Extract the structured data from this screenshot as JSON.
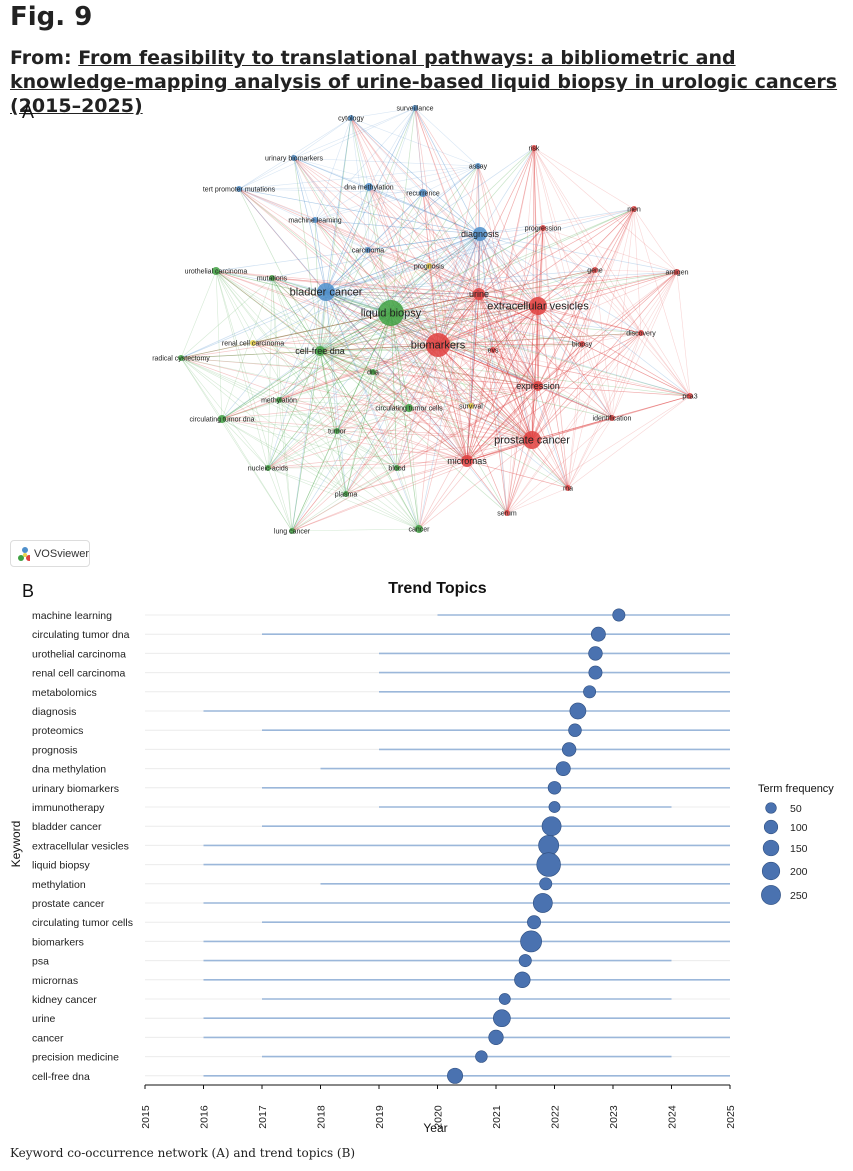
{
  "figure": {
    "number": "Fig. 9",
    "from_label": "From:",
    "article_title": "From feasibility to translational pathways: a bibliometric and knowledge-mapping analysis of urine-based liquid biopsy in urologic cancers (2015–2025)",
    "panel_a_label": "A",
    "panel_b_label": "B",
    "vosviewer_label": "VOSviewer",
    "caption": "Keyword co-occurrence network (A) and trend topics (B)"
  },
  "colors": {
    "blue_cluster": "#4f8fcb",
    "red_cluster": "#e0413f",
    "green_cluster": "#3fa142",
    "yellow_cluster": "#e8d44d",
    "trend_point": "#4a72b0",
    "trend_line": "#9bb7da"
  },
  "network": {
    "nodes": [
      {
        "label": "surveillance",
        "cluster": "blue",
        "size": 3
      },
      {
        "label": "cytology",
        "cluster": "blue",
        "size": 3
      },
      {
        "label": "urinary biomarkers",
        "cluster": "blue",
        "size": 3
      },
      {
        "label": "tert promoter mutations",
        "cluster": "blue",
        "size": 3
      },
      {
        "label": "dna methylation",
        "cluster": "blue",
        "size": 4
      },
      {
        "label": "recurrence",
        "cluster": "blue",
        "size": 4
      },
      {
        "label": "assay",
        "cluster": "blue",
        "size": 3
      },
      {
        "label": "machine learning",
        "cluster": "blue",
        "size": 3
      },
      {
        "label": "carcinoma",
        "cluster": "blue",
        "size": 3
      },
      {
        "label": "diagnosis",
        "cluster": "blue",
        "size": 7
      },
      {
        "label": "bladder cancer",
        "cluster": "blue",
        "size": 9
      },
      {
        "label": "risk",
        "cluster": "red",
        "size": 3
      },
      {
        "label": "men",
        "cluster": "red",
        "size": 3
      },
      {
        "label": "progression",
        "cluster": "red",
        "size": 3
      },
      {
        "label": "gene",
        "cluster": "red",
        "size": 3
      },
      {
        "label": "antigen",
        "cluster": "red",
        "size": 3
      },
      {
        "label": "urine",
        "cluster": "red",
        "size": 6
      },
      {
        "label": "extracellular vesicles",
        "cluster": "red",
        "size": 9
      },
      {
        "label": "discovery",
        "cluster": "red",
        "size": 3
      },
      {
        "label": "biomarkers",
        "cluster": "red",
        "size": 12
      },
      {
        "label": "evs",
        "cluster": "red",
        "size": 3
      },
      {
        "label": "biopsy",
        "cluster": "red",
        "size": 3
      },
      {
        "label": "pca3",
        "cluster": "red",
        "size": 3
      },
      {
        "label": "expression",
        "cluster": "red",
        "size": 5
      },
      {
        "label": "identification",
        "cluster": "red",
        "size": 3
      },
      {
        "label": "prostate cancer",
        "cluster": "red",
        "size": 9
      },
      {
        "label": "micrornas",
        "cluster": "red",
        "size": 6
      },
      {
        "label": "rna",
        "cluster": "red",
        "size": 3
      },
      {
        "label": "serum",
        "cluster": "red",
        "size": 3
      },
      {
        "label": "urothelial carcinoma",
        "cluster": "green",
        "size": 4
      },
      {
        "label": "mutations",
        "cluster": "green",
        "size": 3
      },
      {
        "label": "liquid biopsy",
        "cluster": "green",
        "size": 13
      },
      {
        "label": "radical cystectomy",
        "cluster": "green",
        "size": 3
      },
      {
        "label": "cell-free dna",
        "cluster": "green",
        "size": 5
      },
      {
        "label": "dna",
        "cluster": "green",
        "size": 3
      },
      {
        "label": "methylation",
        "cluster": "green",
        "size": 3
      },
      {
        "label": "circulating tumor dna",
        "cluster": "green",
        "size": 4
      },
      {
        "label": "circulating tumor cells",
        "cluster": "green",
        "size": 4
      },
      {
        "label": "tumor",
        "cluster": "green",
        "size": 3
      },
      {
        "label": "nucleic-acids",
        "cluster": "green",
        "size": 3
      },
      {
        "label": "blood",
        "cluster": "green",
        "size": 3
      },
      {
        "label": "plasma",
        "cluster": "green",
        "size": 3
      },
      {
        "label": "lung cancer",
        "cluster": "green",
        "size": 3
      },
      {
        "label": "cancer",
        "cluster": "green",
        "size": 4
      },
      {
        "label": "renal cell carcinoma",
        "cluster": "yellow",
        "size": 3
      },
      {
        "label": "prognosis",
        "cluster": "yellow",
        "size": 3
      },
      {
        "label": "survival",
        "cluster": "yellow",
        "size": 3
      }
    ]
  },
  "chart_data": {
    "type": "scatter",
    "title": "Trend Topics",
    "xlabel": "Year",
    "ylabel": "Keyword",
    "xlim": [
      2015,
      2025
    ],
    "x_ticks": [
      "2015",
      "2016",
      "2017",
      "2018",
      "2019",
      "2020",
      "2021",
      "2022",
      "2023",
      "2024",
      "2025"
    ],
    "legend": {
      "title": "Term frequency",
      "position": "right",
      "entries": [
        {
          "label": "50",
          "value": 50
        },
        {
          "label": "100",
          "value": 100
        },
        {
          "label": "150",
          "value": 150
        },
        {
          "label": "200",
          "value": 200
        },
        {
          "label": "250",
          "value": 250
        }
      ]
    },
    "series": [
      {
        "keyword": "machine learning",
        "start": 2020,
        "end": 2025,
        "median_year": 2023.1,
        "frequency": 35
      },
      {
        "keyword": "circulating tumor dna",
        "start": 2017,
        "end": 2025,
        "median_year": 2022.75,
        "frequency": 55
      },
      {
        "keyword": "urothelial carcinoma",
        "start": 2019,
        "end": 2025,
        "median_year": 2022.7,
        "frequency": 50
      },
      {
        "keyword": "renal cell carcinoma",
        "start": 2019,
        "end": 2025,
        "median_year": 2022.7,
        "frequency": 45
      },
      {
        "keyword": "metabolomics",
        "start": 2019,
        "end": 2025,
        "median_year": 2022.6,
        "frequency": 35
      },
      {
        "keyword": "diagnosis",
        "start": 2016,
        "end": 2025,
        "median_year": 2022.4,
        "frequency": 80
      },
      {
        "keyword": "proteomics",
        "start": 2017,
        "end": 2025,
        "median_year": 2022.35,
        "frequency": 40
      },
      {
        "keyword": "prognosis",
        "start": 2019,
        "end": 2025,
        "median_year": 2022.25,
        "frequency": 50
      },
      {
        "keyword": "dna methylation",
        "start": 2018,
        "end": 2025,
        "median_year": 2022.15,
        "frequency": 55
      },
      {
        "keyword": "urinary biomarkers",
        "start": 2017,
        "end": 2025,
        "median_year": 2022.0,
        "frequency": 40
      },
      {
        "keyword": "immunotherapy",
        "start": 2019,
        "end": 2024,
        "median_year": 2022.0,
        "frequency": 25
      },
      {
        "keyword": "bladder cancer",
        "start": 2017,
        "end": 2025,
        "median_year": 2021.95,
        "frequency": 130
      },
      {
        "keyword": "extracellular vesicles",
        "start": 2016,
        "end": 2025,
        "median_year": 2021.9,
        "frequency": 150
      },
      {
        "keyword": "liquid biopsy",
        "start": 2016,
        "end": 2025,
        "median_year": 2021.9,
        "frequency": 230
      },
      {
        "keyword": "methylation",
        "start": 2018,
        "end": 2025,
        "median_year": 2021.85,
        "frequency": 35
      },
      {
        "keyword": "prostate cancer",
        "start": 2016,
        "end": 2025,
        "median_year": 2021.8,
        "frequency": 130
      },
      {
        "keyword": "circulating tumor cells",
        "start": 2017,
        "end": 2025,
        "median_year": 2021.65,
        "frequency": 45
      },
      {
        "keyword": "biomarkers",
        "start": 2016,
        "end": 2025,
        "median_year": 2021.6,
        "frequency": 170
      },
      {
        "keyword": "psa",
        "start": 2016,
        "end": 2024,
        "median_year": 2021.5,
        "frequency": 35
      },
      {
        "keyword": "micrornas",
        "start": 2016,
        "end": 2025,
        "median_year": 2021.45,
        "frequency": 75
      },
      {
        "keyword": "kidney cancer",
        "start": 2017,
        "end": 2024,
        "median_year": 2021.15,
        "frequency": 25
      },
      {
        "keyword": "urine",
        "start": 2016,
        "end": 2025,
        "median_year": 2021.1,
        "frequency": 95
      },
      {
        "keyword": "cancer",
        "start": 2016,
        "end": 2025,
        "median_year": 2021.0,
        "frequency": 60
      },
      {
        "keyword": "precision medicine",
        "start": 2017,
        "end": 2024,
        "median_year": 2020.75,
        "frequency": 30
      },
      {
        "keyword": "cell-free dna",
        "start": 2016,
        "end": 2025,
        "median_year": 2020.3,
        "frequency": 70
      }
    ]
  }
}
